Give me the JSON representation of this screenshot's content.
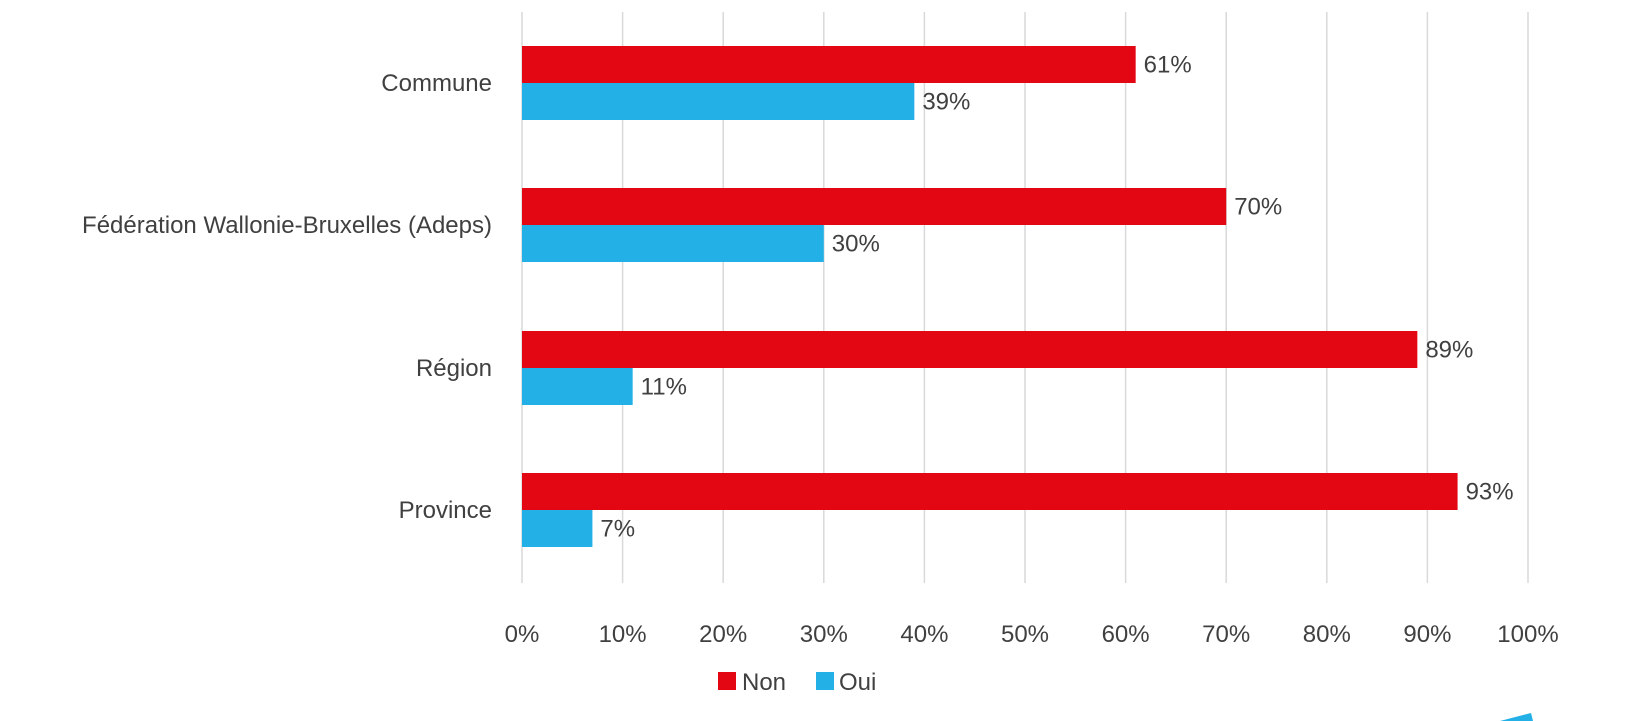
{
  "chart_data": {
    "type": "bar",
    "orientation": "horizontal",
    "categories": [
      "Commune",
      "Fédération Wallonie-Bruxelles (Adeps)",
      "Région",
      "Province"
    ],
    "series": [
      {
        "name": "Non",
        "values": [
          61,
          70,
          89,
          93
        ],
        "color": "#e30613"
      },
      {
        "name": "Oui",
        "values": [
          39,
          30,
          11,
          7
        ],
        "color": "#22b0e6"
      }
    ],
    "value_labels": {
      "Non": [
        "61%",
        "70%",
        "89%",
        "93%"
      ],
      "Oui": [
        "39%",
        "30%",
        "11%",
        "7%"
      ]
    },
    "xlim": [
      0,
      100
    ],
    "ticks": [
      0,
      10,
      20,
      30,
      40,
      50,
      60,
      70,
      80,
      90,
      100
    ],
    "tick_labels": [
      "0%",
      "10%",
      "20%",
      "30%",
      "40%",
      "50%",
      "60%",
      "70%",
      "80%",
      "90%",
      "100%"
    ],
    "grid": true,
    "legend_position": "bottom",
    "title": "",
    "xlabel": "",
    "ylabel": ""
  }
}
